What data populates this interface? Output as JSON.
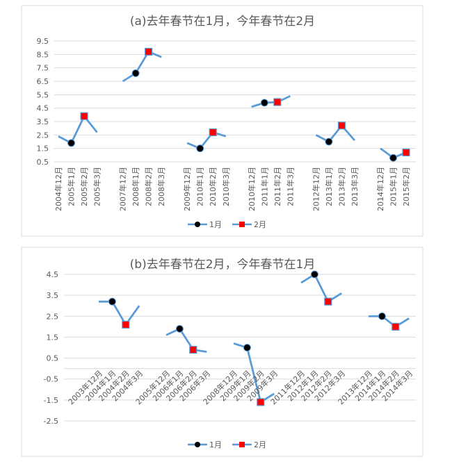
{
  "colors": {
    "line": "#5B9BD5",
    "jan_marker": "#000000",
    "feb_marker": "#FF0000",
    "grid": "#D9D9D9",
    "text": "#595959"
  },
  "chart_data": [
    {
      "type": "line",
      "title": "(a)去年春节在1月，今年春节在2月",
      "ylim": [
        0.5,
        9.5
      ],
      "yticks": [
        "0.5",
        "1.5",
        "2.5",
        "3.5",
        "4.5",
        "5.5",
        "6.5",
        "7.5",
        "8.5",
        "9.5"
      ],
      "grid": true,
      "legend": {
        "placement": "bottom",
        "entries": [
          "1月",
          "2月"
        ]
      },
      "groups": [
        {
          "categories": [
            "2004年12月",
            "2005年1月",
            "2005年2月",
            "2005年3月"
          ],
          "values": [
            2.4,
            1.9,
            3.9,
            2.7
          ],
          "markers": [
            "",
            "1月",
            "2月",
            ""
          ]
        },
        {
          "categories": [
            "2007年12月",
            "2008年1月",
            "2008年2月",
            "2008年3月"
          ],
          "values": [
            6.5,
            7.1,
            8.7,
            8.3
          ],
          "markers": [
            "",
            "1月",
            "2月",
            ""
          ]
        },
        {
          "categories": [
            "2009年12月",
            "2010年1月",
            "2010年2月",
            "2010年3月"
          ],
          "values": [
            1.9,
            1.5,
            2.7,
            2.4
          ],
          "markers": [
            "",
            "1月",
            "2月",
            ""
          ]
        },
        {
          "categories": [
            "2010年12月",
            "2011年1月",
            "2011年2月",
            "2011年3月"
          ],
          "values": [
            4.6,
            4.9,
            4.95,
            5.4
          ],
          "markers": [
            "",
            "1月",
            "2月",
            ""
          ]
        },
        {
          "categories": [
            "2012年12月",
            "2013年1月",
            "2013年2月",
            "2013年3月"
          ],
          "values": [
            2.5,
            2.0,
            3.2,
            2.1
          ],
          "markers": [
            "",
            "1月",
            "2月",
            ""
          ]
        },
        {
          "categories": [
            "2014年12月",
            "2015年1月",
            "2015年2月"
          ],
          "values": [
            1.5,
            0.8,
            1.2
          ],
          "markers": [
            "",
            "1月",
            "2月"
          ]
        }
      ]
    },
    {
      "type": "line",
      "title": "(b)去年春节在2月，今年春节在1月",
      "ylim": [
        -2.5,
        4.5
      ],
      "yticks": [
        "-2.5",
        "-1.5",
        "-0.5",
        "0.5",
        "1.5",
        "2.5",
        "3.5",
        "4.5"
      ],
      "grid": true,
      "legend": {
        "placement": "bottom",
        "entries": [
          "1月",
          "2月"
        ]
      },
      "groups": [
        {
          "categories": [
            "2003年12月",
            "2004年1月",
            "2004年2月",
            "2004年3月"
          ],
          "values": [
            3.2,
            3.2,
            2.1,
            3.0
          ],
          "markers": [
            "",
            "1月",
            "2月",
            ""
          ]
        },
        {
          "categories": [
            "2005年12月",
            "2006年1月",
            "2006年2月",
            "2006年3月"
          ],
          "values": [
            1.6,
            1.9,
            0.9,
            0.8
          ],
          "markers": [
            "",
            "1月",
            "2月",
            ""
          ]
        },
        {
          "categories": [
            "2008年12月",
            "2009年1月",
            "2009年2月",
            "2009年3月"
          ],
          "values": [
            1.2,
            1.0,
            -1.6,
            -1.2
          ],
          "markers": [
            "",
            "1月",
            "2月",
            ""
          ]
        },
        {
          "categories": [
            "2011年12月",
            "2012年1月",
            "2012年2月",
            "2012年3月"
          ],
          "values": [
            4.1,
            4.5,
            3.2,
            3.6
          ],
          "markers": [
            "",
            "1月",
            "2月",
            ""
          ]
        },
        {
          "categories": [
            "2013年12月",
            "2014年1月",
            "2014年2月",
            "2014年3月"
          ],
          "values": [
            2.5,
            2.5,
            2.0,
            2.4
          ],
          "markers": [
            "",
            "1月",
            "2月",
            ""
          ]
        }
      ]
    }
  ]
}
